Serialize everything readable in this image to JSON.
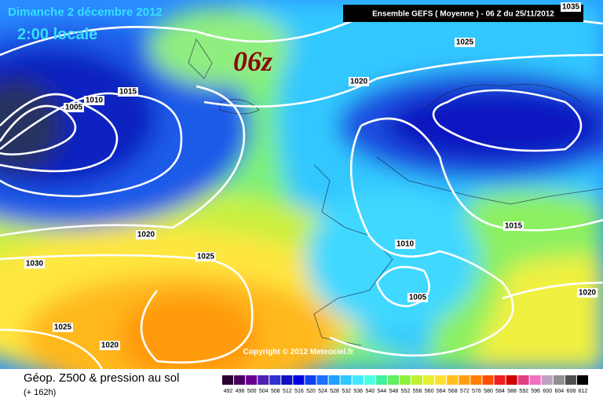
{
  "header": {
    "date": "Dimanche 2 décembre 2012",
    "time": "2:00 locale",
    "run": "06z",
    "model": "Ensemble GEFS ( Moyenne )  -  06 Z du 25/11/2012"
  },
  "isobar_labels": [
    1035,
    1025,
    1020,
    1015,
    1010,
    1005,
    1020,
    1025,
    1030,
    1015,
    1010,
    1005,
    1020,
    1025,
    1020
  ],
  "copyright": "Copyright © 2012 Meteociel.fr",
  "footer": {
    "title": "Géop. Z500 & pression au sol",
    "lead": "(+ 162h)"
  },
  "scale": {
    "labels": [
      492,
      496,
      500,
      504,
      508,
      512,
      516,
      520,
      524,
      528,
      532,
      536,
      540,
      544,
      548,
      552,
      556,
      560,
      564,
      568,
      572,
      576,
      580,
      584,
      588,
      592,
      596,
      600,
      604,
      608,
      612
    ]
  }
}
